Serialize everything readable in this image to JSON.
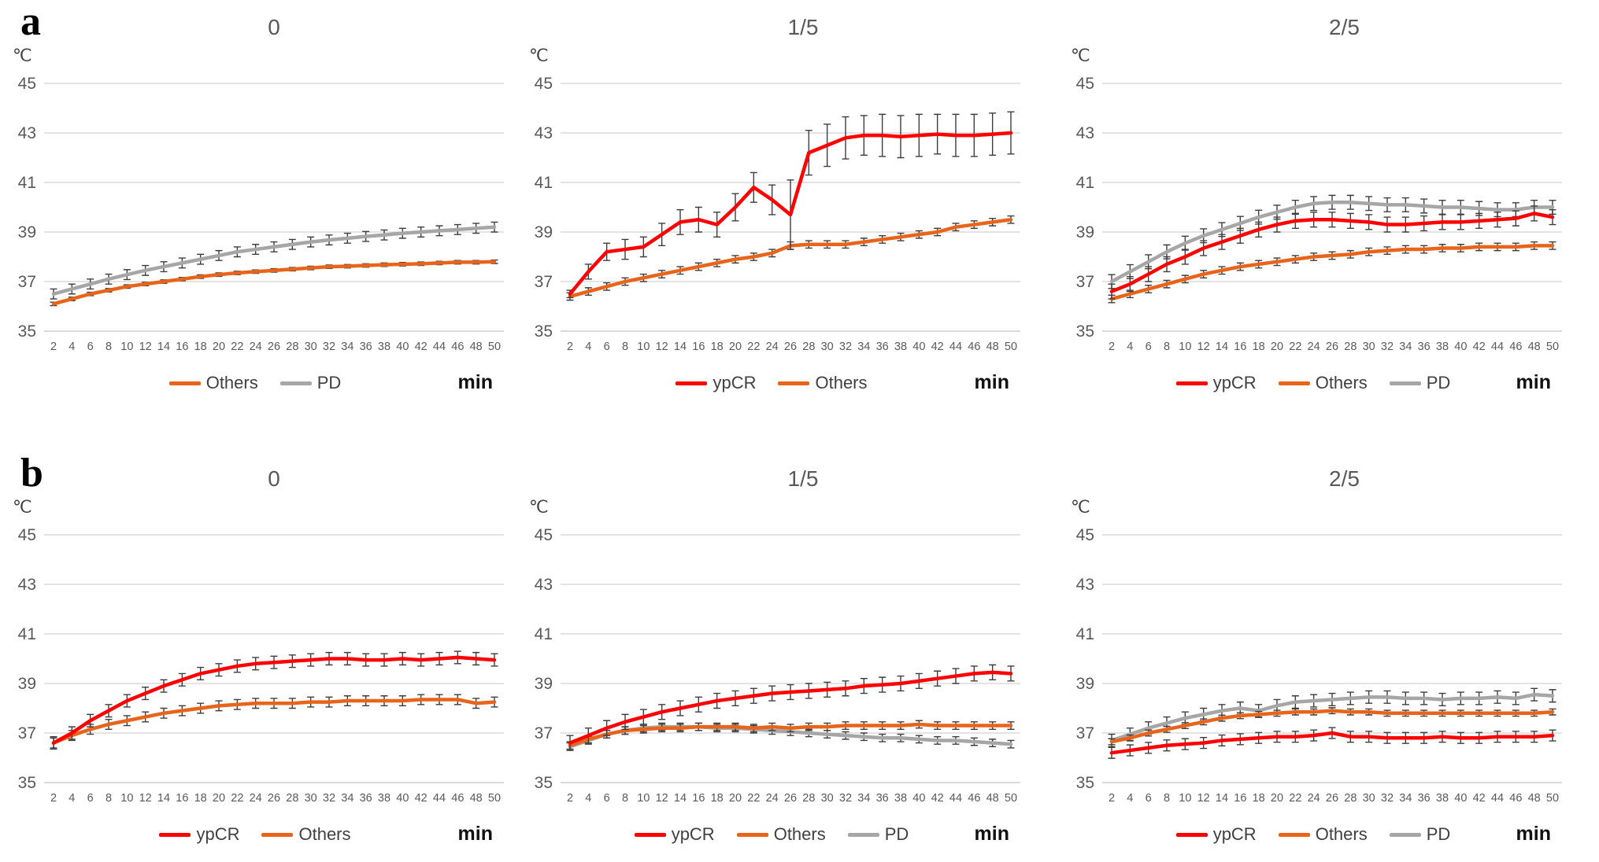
{
  "panels": [
    {
      "label": "a"
    },
    {
      "label": "b"
    }
  ],
  "colors": {
    "ypCR": "#ff0000",
    "Others": "#e8641b",
    "PD": "#a6a6a6",
    "error_bar": "#3d3d3d",
    "gridline": "#c9c9c9",
    "axis_text": "#595959"
  },
  "chart_data": [
    {
      "type": "line",
      "panel": "a",
      "title": "0",
      "y_axis_unit": "℃",
      "x_axis_unit": "min",
      "ylim": [
        35,
        45
      ],
      "y_ticks": [
        45,
        43,
        41,
        39,
        37,
        35
      ],
      "grid": true,
      "legend_position": "bottom",
      "x": [
        2,
        4,
        6,
        8,
        10,
        12,
        14,
        16,
        18,
        20,
        22,
        24,
        26,
        28,
        30,
        32,
        34,
        36,
        38,
        40,
        42,
        44,
        46,
        48,
        50
      ],
      "series": [
        {
          "name": "Others",
          "color": "#e8641b",
          "err": 0.07,
          "values": [
            36.1,
            36.3,
            36.5,
            36.65,
            36.8,
            36.9,
            37.0,
            37.1,
            37.2,
            37.28,
            37.35,
            37.4,
            37.45,
            37.5,
            37.55,
            37.6,
            37.62,
            37.65,
            37.68,
            37.7,
            37.72,
            37.75,
            37.78,
            37.78,
            37.8
          ]
        },
        {
          "name": "PD",
          "color": "#a6a6a6",
          "err": 0.2,
          "values": [
            36.5,
            36.7,
            36.9,
            37.1,
            37.28,
            37.45,
            37.6,
            37.75,
            37.9,
            38.05,
            38.2,
            38.3,
            38.4,
            38.5,
            38.6,
            38.68,
            38.75,
            38.82,
            38.88,
            38.95,
            39.0,
            39.05,
            39.1,
            39.15,
            39.2
          ]
        }
      ]
    },
    {
      "type": "line",
      "panel": "a",
      "title": "1/5",
      "y_axis_unit": "℃",
      "x_axis_unit": "min",
      "ylim": [
        35,
        45
      ],
      "y_ticks": [
        45,
        43,
        41,
        39,
        37,
        35
      ],
      "grid": true,
      "legend_position": "bottom",
      "x": [
        2,
        4,
        6,
        8,
        10,
        12,
        14,
        16,
        18,
        20,
        22,
        24,
        26,
        28,
        30,
        32,
        34,
        36,
        38,
        40,
        42,
        44,
        46,
        48,
        50
      ],
      "series": [
        {
          "name": "ypCR",
          "color": "#ff0000",
          "err": [
            0.15,
            0.3,
            0.35,
            0.4,
            0.4,
            0.45,
            0.5,
            0.5,
            0.5,
            0.55,
            0.6,
            0.6,
            1.4,
            0.9,
            0.85,
            0.85,
            0.8,
            0.85,
            0.85,
            0.85,
            0.8,
            0.85,
            0.85,
            0.85,
            0.85
          ],
          "values": [
            36.5,
            37.4,
            38.2,
            38.3,
            38.4,
            38.9,
            39.4,
            39.5,
            39.3,
            40.0,
            40.8,
            40.3,
            39.7,
            42.2,
            42.5,
            42.8,
            42.9,
            42.9,
            42.85,
            42.9,
            42.95,
            42.9,
            42.9,
            42.95,
            43.0
          ]
        },
        {
          "name": "Others",
          "color": "#e8641b",
          "err": 0.15,
          "values": [
            36.4,
            36.6,
            36.8,
            37.0,
            37.15,
            37.3,
            37.45,
            37.6,
            37.75,
            37.9,
            38.0,
            38.15,
            38.45,
            38.5,
            38.5,
            38.5,
            38.6,
            38.7,
            38.8,
            38.9,
            39.0,
            39.2,
            39.3,
            39.4,
            39.5
          ]
        }
      ]
    },
    {
      "type": "line",
      "panel": "a",
      "title": "2/5",
      "y_axis_unit": "℃",
      "x_axis_unit": "min",
      "ylim": [
        35,
        45
      ],
      "y_ticks": [
        45,
        43,
        41,
        39,
        37,
        35
      ],
      "grid": true,
      "legend_position": "bottom",
      "x": [
        2,
        4,
        6,
        8,
        10,
        12,
        14,
        16,
        18,
        20,
        22,
        24,
        26,
        28,
        30,
        32,
        34,
        36,
        38,
        40,
        42,
        44,
        46,
        48,
        50
      ],
      "series": [
        {
          "name": "ypCR",
          "color": "#ff0000",
          "err": 0.3,
          "values": [
            36.6,
            36.9,
            37.3,
            37.7,
            38.0,
            38.35,
            38.6,
            38.85,
            39.1,
            39.3,
            39.45,
            39.5,
            39.5,
            39.45,
            39.4,
            39.3,
            39.3,
            39.35,
            39.4,
            39.4,
            39.45,
            39.5,
            39.55,
            39.75,
            39.6
          ]
        },
        {
          "name": "Others",
          "color": "#e8641b",
          "err": 0.15,
          "values": [
            36.3,
            36.5,
            36.7,
            36.9,
            37.1,
            37.3,
            37.45,
            37.6,
            37.7,
            37.8,
            37.9,
            38.0,
            38.05,
            38.1,
            38.2,
            38.25,
            38.3,
            38.3,
            38.35,
            38.35,
            38.4,
            38.4,
            38.4,
            38.45,
            38.45
          ]
        },
        {
          "name": "PD",
          "color": "#a6a6a6",
          "err": 0.28,
          "values": [
            37.0,
            37.4,
            37.8,
            38.2,
            38.55,
            38.85,
            39.1,
            39.35,
            39.6,
            39.8,
            40.0,
            40.15,
            40.2,
            40.2,
            40.15,
            40.1,
            40.1,
            40.05,
            40.0,
            40.0,
            39.95,
            39.9,
            39.9,
            40.0,
            40.0
          ]
        }
      ]
    },
    {
      "type": "line",
      "panel": "b",
      "title": "0",
      "y_axis_unit": "℃",
      "x_axis_unit": "min",
      "ylim": [
        35,
        45
      ],
      "y_ticks": [
        45,
        43,
        41,
        39,
        37,
        35
      ],
      "grid": true,
      "legend_position": "bottom",
      "x": [
        2,
        4,
        6,
        8,
        10,
        12,
        14,
        16,
        18,
        20,
        22,
        24,
        26,
        28,
        30,
        32,
        34,
        36,
        38,
        40,
        42,
        44,
        46,
        48,
        50
      ],
      "series": [
        {
          "name": "ypCR",
          "color": "#ff0000",
          "err": 0.25,
          "values": [
            36.6,
            37.0,
            37.5,
            37.9,
            38.3,
            38.6,
            38.9,
            39.15,
            39.4,
            39.55,
            39.7,
            39.8,
            39.85,
            39.9,
            39.95,
            40.0,
            40.0,
            39.95,
            39.95,
            40.0,
            39.95,
            40.0,
            40.05,
            40.0,
            39.95
          ]
        },
        {
          "name": "Others",
          "color": "#e8641b",
          "err": 0.2,
          "values": [
            36.6,
            36.9,
            37.15,
            37.35,
            37.5,
            37.65,
            37.8,
            37.9,
            38.0,
            38.1,
            38.15,
            38.2,
            38.2,
            38.2,
            38.25,
            38.25,
            38.3,
            38.3,
            38.3,
            38.3,
            38.35,
            38.35,
            38.35,
            38.2,
            38.25
          ]
        }
      ]
    },
    {
      "type": "line",
      "panel": "b",
      "title": "1/5",
      "y_axis_unit": "℃",
      "x_axis_unit": "min",
      "ylim": [
        35,
        45
      ],
      "y_ticks": [
        45,
        43,
        41,
        39,
        37,
        35
      ],
      "grid": true,
      "legend_position": "bottom",
      "x": [
        2,
        4,
        6,
        8,
        10,
        12,
        14,
        16,
        18,
        20,
        22,
        24,
        26,
        28,
        30,
        32,
        34,
        36,
        38,
        40,
        42,
        44,
        46,
        48,
        50
      ],
      "series": [
        {
          "name": "ypCR",
          "color": "#ff0000",
          "err": 0.3,
          "values": [
            36.6,
            36.9,
            37.2,
            37.45,
            37.65,
            37.85,
            38.0,
            38.15,
            38.3,
            38.4,
            38.5,
            38.6,
            38.65,
            38.7,
            38.75,
            38.8,
            38.9,
            38.95,
            39.0,
            39.1,
            39.2,
            39.3,
            39.4,
            39.45,
            39.4
          ]
        },
        {
          "name": "Others",
          "color": "#e8641b",
          "err": 0.15,
          "values": [
            36.5,
            36.75,
            36.95,
            37.1,
            37.15,
            37.2,
            37.2,
            37.25,
            37.25,
            37.25,
            37.2,
            37.25,
            37.2,
            37.25,
            37.25,
            37.3,
            37.3,
            37.3,
            37.3,
            37.35,
            37.3,
            37.3,
            37.3,
            37.3,
            37.3
          ]
        },
        {
          "name": "PD",
          "color": "#a6a6a6",
          "err": 0.15,
          "values": [
            36.45,
            36.7,
            36.95,
            37.1,
            37.2,
            37.25,
            37.25,
            37.25,
            37.2,
            37.2,
            37.15,
            37.1,
            37.05,
            37.0,
            36.95,
            36.9,
            36.85,
            36.8,
            36.8,
            36.75,
            36.7,
            36.7,
            36.65,
            36.6,
            36.55
          ]
        }
      ]
    },
    {
      "type": "line",
      "panel": "b",
      "title": "2/5",
      "y_axis_unit": "℃",
      "x_axis_unit": "min",
      "ylim": [
        35,
        45
      ],
      "y_ticks": [
        45,
        43,
        41,
        39,
        37,
        35
      ],
      "grid": true,
      "legend_position": "bottom",
      "x": [
        2,
        4,
        6,
        8,
        10,
        12,
        14,
        16,
        18,
        20,
        22,
        24,
        26,
        28,
        30,
        32,
        34,
        36,
        38,
        40,
        42,
        44,
        46,
        48,
        50
      ],
      "series": [
        {
          "name": "ypCR",
          "color": "#ff0000",
          "err": 0.22,
          "values": [
            36.2,
            36.3,
            36.4,
            36.5,
            36.55,
            36.6,
            36.7,
            36.75,
            36.8,
            36.85,
            36.85,
            36.9,
            37.0,
            36.85,
            36.85,
            36.8,
            36.8,
            36.8,
            36.85,
            36.8,
            36.8,
            36.85,
            36.85,
            36.85,
            36.9
          ]
        },
        {
          "name": "Others",
          "color": "#e8641b",
          "err": 0.12,
          "values": [
            36.65,
            36.8,
            37.0,
            37.15,
            37.3,
            37.45,
            37.6,
            37.7,
            37.75,
            37.8,
            37.85,
            37.85,
            37.9,
            37.85,
            37.85,
            37.8,
            37.8,
            37.8,
            37.8,
            37.8,
            37.8,
            37.8,
            37.8,
            37.8,
            37.85
          ]
        },
        {
          "name": "PD",
          "color": "#a6a6a6",
          "err": 0.25,
          "values": [
            36.7,
            36.95,
            37.2,
            37.4,
            37.6,
            37.75,
            37.9,
            38.0,
            37.9,
            38.1,
            38.25,
            38.3,
            38.35,
            38.4,
            38.45,
            38.45,
            38.4,
            38.4,
            38.35,
            38.4,
            38.4,
            38.45,
            38.4,
            38.55,
            38.5
          ]
        }
      ]
    }
  ]
}
